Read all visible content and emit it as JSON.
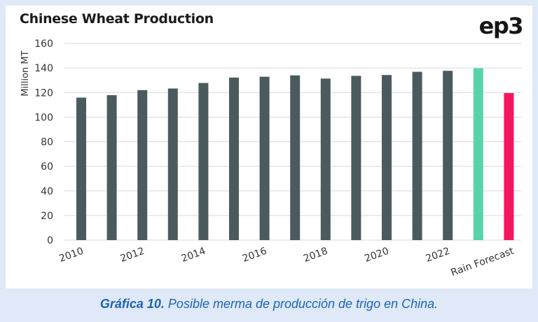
{
  "chart_data": {
    "type": "bar",
    "title": "Chinese Wheat Production",
    "ylabel": "Million MT",
    "xlabel": "",
    "ylim": [
      0,
      160
    ],
    "yticks": [
      0,
      20,
      40,
      60,
      80,
      100,
      120,
      140,
      160
    ],
    "grid": true,
    "x_tick_labels": [
      "2010",
      "2012",
      "2014",
      "2016",
      "2018",
      "2020",
      "2022",
      "Rain Forecast"
    ],
    "categories": [
      "2010",
      "2011",
      "2012",
      "2013",
      "2014",
      "2015",
      "2016",
      "2017",
      "2018",
      "2019",
      "2020",
      "2021",
      "2022",
      "2023",
      "Rain Forecast"
    ],
    "values": [
      115.9,
      117.9,
      122.0,
      123.3,
      127.8,
      132.2,
      132.9,
      134.0,
      131.4,
      133.6,
      134.3,
      136.9,
      137.7,
      139.8,
      119.6
    ],
    "bar_colors": [
      "#4b5b5d",
      "#4b5b5d",
      "#4b5b5d",
      "#4b5b5d",
      "#4b5b5d",
      "#4b5b5d",
      "#4b5b5d",
      "#4b5b5d",
      "#4b5b5d",
      "#4b5b5d",
      "#4b5b5d",
      "#4b5b5d",
      "#4b5b5d",
      "#58d3a8",
      "#f5165f"
    ]
  },
  "logo": {
    "text": "ep3"
  },
  "caption": {
    "label": "Gráfica 10.",
    "text": "Posible merma de producción de trigo en China."
  }
}
